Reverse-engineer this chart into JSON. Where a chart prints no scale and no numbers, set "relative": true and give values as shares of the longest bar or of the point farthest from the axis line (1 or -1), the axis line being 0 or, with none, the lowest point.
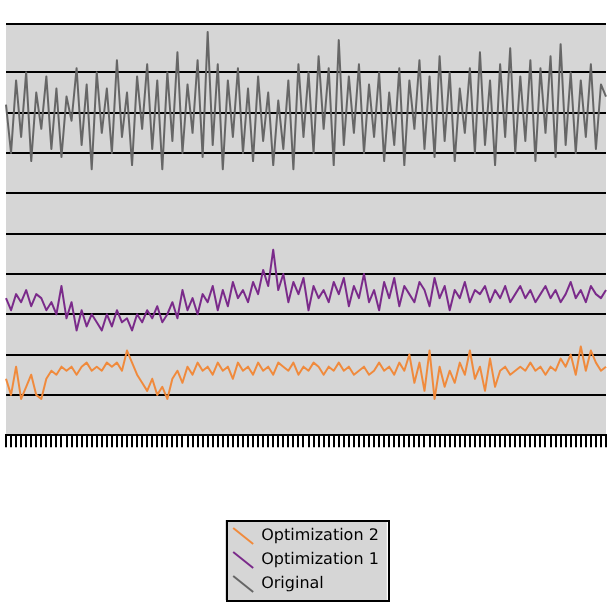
{
  "chart_data": {
    "type": "line",
    "relative": true,
    "grid": "y",
    "legend": "bottom",
    "marker": "none",
    "line_style": "solid",
    "categories": [
      null,
      null,
      null,
      null,
      null,
      null,
      null,
      null,
      null,
      null,
      null,
      null,
      null,
      null,
      null,
      null,
      null,
      null,
      null,
      null,
      null,
      null,
      null,
      null,
      null,
      null,
      null,
      null,
      null,
      null,
      null,
      null,
      null,
      null,
      null,
      null,
      null,
      null,
      null,
      null,
      null,
      null,
      null,
      null,
      null,
      null,
      null,
      null,
      null,
      null,
      null,
      null,
      null,
      null,
      null,
      null,
      null,
      null,
      null,
      null,
      null,
      null,
      null,
      null,
      null,
      null,
      null,
      null,
      null,
      null,
      null,
      null,
      null,
      null,
      null,
      null,
      null,
      null,
      null,
      null,
      null,
      null,
      null,
      null,
      null,
      null,
      null,
      null,
      null,
      null,
      null,
      null,
      null,
      null,
      null,
      null,
      null,
      null,
      null,
      null,
      null,
      null,
      null,
      null,
      null,
      null,
      null,
      null,
      null,
      null,
      null,
      null,
      null,
      null,
      null,
      null,
      null,
      null,
      null,
      null
    ],
    "series": [
      {
        "name": "Optimization 2",
        "color": "#f08a3c",
        "values": [
          0.14,
          0.1,
          0.17,
          0.09,
          0.12,
          0.15,
          0.1,
          0.09,
          0.14,
          0.16,
          0.15,
          0.17,
          0.16,
          0.17,
          0.15,
          0.17,
          0.18,
          0.16,
          0.17,
          0.16,
          0.18,
          0.17,
          0.18,
          0.16,
          0.21,
          0.18,
          0.15,
          0.13,
          0.11,
          0.14,
          0.1,
          0.12,
          0.09,
          0.14,
          0.16,
          0.13,
          0.17,
          0.15,
          0.18,
          0.16,
          0.17,
          0.15,
          0.18,
          0.16,
          0.17,
          0.14,
          0.18,
          0.16,
          0.17,
          0.15,
          0.18,
          0.16,
          0.17,
          0.15,
          0.18,
          0.17,
          0.16,
          0.18,
          0.15,
          0.17,
          0.16,
          0.18,
          0.17,
          0.15,
          0.17,
          0.16,
          0.18,
          0.16,
          0.17,
          0.15,
          0.16,
          0.17,
          0.15,
          0.16,
          0.18,
          0.16,
          0.17,
          0.15,
          0.18,
          0.16,
          0.2,
          0.13,
          0.18,
          0.11,
          0.21,
          0.09,
          0.17,
          0.12,
          0.16,
          0.13,
          0.18,
          0.15,
          0.21,
          0.14,
          0.17,
          0.11,
          0.19,
          0.12,
          0.16,
          0.17,
          0.15,
          0.16,
          0.17,
          0.16,
          0.18,
          0.16,
          0.17,
          0.15,
          0.17,
          0.16,
          0.19,
          0.17,
          0.2,
          0.15,
          0.22,
          0.16,
          0.21,
          0.18,
          0.16,
          0.17
        ]
      },
      {
        "name": "Optimization 1",
        "color": "#7a2a8a",
        "values": [
          0.34,
          0.31,
          0.35,
          0.33,
          0.36,
          0.32,
          0.35,
          0.34,
          0.31,
          0.33,
          0.3,
          0.37,
          0.29,
          0.33,
          0.26,
          0.31,
          0.27,
          0.3,
          0.28,
          0.26,
          0.3,
          0.27,
          0.31,
          0.28,
          0.29,
          0.26,
          0.3,
          0.28,
          0.31,
          0.29,
          0.32,
          0.28,
          0.3,
          0.33,
          0.29,
          0.36,
          0.31,
          0.34,
          0.3,
          0.35,
          0.33,
          0.37,
          0.31,
          0.36,
          0.32,
          0.38,
          0.34,
          0.36,
          0.33,
          0.38,
          0.35,
          0.41,
          0.37,
          0.46,
          0.36,
          0.4,
          0.33,
          0.38,
          0.35,
          0.39,
          0.31,
          0.37,
          0.34,
          0.36,
          0.33,
          0.38,
          0.35,
          0.39,
          0.32,
          0.37,
          0.34,
          0.4,
          0.33,
          0.36,
          0.31,
          0.38,
          0.34,
          0.39,
          0.32,
          0.37,
          0.35,
          0.33,
          0.38,
          0.36,
          0.32,
          0.39,
          0.34,
          0.37,
          0.31,
          0.36,
          0.34,
          0.38,
          0.33,
          0.36,
          0.35,
          0.37,
          0.33,
          0.36,
          0.34,
          0.37,
          0.33,
          0.35,
          0.37,
          0.34,
          0.36,
          0.33,
          0.35,
          0.37,
          0.34,
          0.36,
          0.33,
          0.35,
          0.38,
          0.34,
          0.36,
          0.33,
          0.37,
          0.35,
          0.34,
          0.36
        ]
      },
      {
        "name": "Original",
        "color": "#666666",
        "values": [
          0.82,
          0.7,
          0.88,
          0.74,
          0.9,
          0.68,
          0.85,
          0.76,
          0.89,
          0.71,
          0.86,
          0.69,
          0.84,
          0.78,
          0.91,
          0.72,
          0.87,
          0.66,
          0.9,
          0.75,
          0.86,
          0.7,
          0.93,
          0.74,
          0.85,
          0.67,
          0.89,
          0.76,
          0.92,
          0.71,
          0.88,
          0.66,
          0.9,
          0.73,
          0.95,
          0.7,
          0.87,
          0.75,
          0.93,
          0.69,
          1.0,
          0.72,
          0.92,
          0.66,
          0.88,
          0.74,
          0.91,
          0.7,
          0.86,
          0.68,
          0.89,
          0.73,
          0.85,
          0.67,
          0.83,
          0.71,
          0.88,
          0.66,
          0.92,
          0.74,
          0.9,
          0.7,
          0.94,
          0.76,
          0.91,
          0.67,
          0.98,
          0.72,
          0.89,
          0.75,
          0.92,
          0.7,
          0.87,
          0.74,
          0.9,
          0.68,
          0.85,
          0.72,
          0.91,
          0.67,
          0.88,
          0.76,
          0.93,
          0.71,
          0.89,
          0.69,
          0.94,
          0.73,
          0.9,
          0.68,
          0.86,
          0.75,
          0.91,
          0.7,
          0.95,
          0.72,
          0.88,
          0.67,
          0.92,
          0.74,
          0.96,
          0.7,
          0.89,
          0.73,
          0.93,
          0.68,
          0.91,
          0.75,
          0.94,
          0.69,
          0.97,
          0.72,
          0.9,
          0.7,
          0.88,
          0.74,
          0.92,
          0.71,
          0.87,
          0.84
        ]
      }
    ]
  }
}
